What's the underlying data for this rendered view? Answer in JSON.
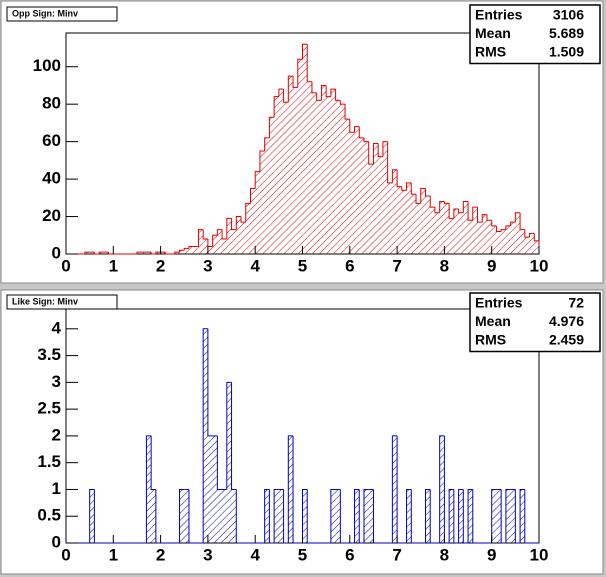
{
  "chart_data": [
    {
      "type": "histogram",
      "title": "Opp Sign: Minv",
      "color": "#e00000",
      "bins": [
        0,
        0.1,
        0.2,
        0.3,
        0.4,
        0.5,
        0.6,
        0.7,
        0.8,
        0.9,
        1,
        1.1,
        1.2,
        1.3,
        1.4,
        1.5,
        1.6,
        1.7,
        1.8,
        1.9,
        2,
        2.1,
        2.2,
        2.3,
        2.4,
        2.5,
        2.6,
        2.7,
        2.8,
        2.9,
        3,
        3.1,
        3.2,
        3.3,
        3.4,
        3.5,
        3.6,
        3.7,
        3.8,
        3.9,
        4,
        4.1,
        4.2,
        4.3,
        4.4,
        4.5,
        4.6,
        4.7,
        4.8,
        4.9,
        5,
        5.1,
        5.2,
        5.3,
        5.4,
        5.5,
        5.6,
        5.7,
        5.8,
        5.9,
        6,
        6.1,
        6.2,
        6.3,
        6.4,
        6.5,
        6.6,
        6.7,
        6.8,
        6.9,
        7,
        7.1,
        7.2,
        7.3,
        7.4,
        7.5,
        7.6,
        7.7,
        7.8,
        7.9,
        8,
        8.1,
        8.2,
        8.3,
        8.4,
        8.5,
        8.6,
        8.7,
        8.8,
        8.9,
        9,
        9.1,
        9.2,
        9.3,
        9.4,
        9.5,
        9.6,
        9.7,
        9.8,
        9.9,
        10
      ],
      "values": [
        0,
        0,
        0,
        0,
        1,
        1,
        0,
        1,
        1,
        0,
        0,
        0,
        0,
        0,
        0,
        1,
        1,
        1,
        0,
        1,
        1,
        0,
        0,
        1,
        2,
        3,
        4,
        4,
        13,
        8,
        4,
        10,
        13,
        8,
        19,
        13,
        20,
        17,
        27,
        35,
        44,
        55,
        62,
        73,
        84,
        88,
        81,
        95,
        89,
        104,
        112,
        92,
        86,
        82,
        90,
        84,
        88,
        82,
        80,
        72,
        65,
        68,
        62,
        60,
        48,
        59,
        52,
        60,
        38,
        45,
        36,
        34,
        38,
        32,
        27,
        35,
        31,
        25,
        22,
        28,
        27,
        19,
        24,
        22,
        28,
        18,
        25,
        17,
        21,
        18,
        15,
        12,
        13,
        15,
        17,
        22,
        13,
        9,
        11,
        7
      ],
      "xlim": [
        0,
        10
      ],
      "xticks": [
        0,
        1,
        2,
        3,
        4,
        5,
        6,
        7,
        8,
        9,
        10
      ],
      "ylim": [
        0,
        118
      ],
      "yticks": [
        0,
        20,
        40,
        60,
        80,
        100
      ],
      "stats": [
        {
          "label": "Entries",
          "value": 3106
        },
        {
          "label": "Mean",
          "value": 5.689
        },
        {
          "label": "RMS",
          "value": 1.509
        }
      ]
    },
    {
      "type": "histogram",
      "title": "Like Sign: Minv",
      "color": "#0000c0",
      "bins": [
        0,
        0.1,
        0.2,
        0.3,
        0.4,
        0.5,
        0.6,
        0.7,
        0.8,
        0.9,
        1,
        1.1,
        1.2,
        1.3,
        1.4,
        1.5,
        1.6,
        1.7,
        1.8,
        1.9,
        2,
        2.1,
        2.2,
        2.3,
        2.4,
        2.5,
        2.6,
        2.7,
        2.8,
        2.9,
        3,
        3.1,
        3.2,
        3.3,
        3.4,
        3.5,
        3.6,
        3.7,
        3.8,
        3.9,
        4,
        4.1,
        4.2,
        4.3,
        4.4,
        4.5,
        4.6,
        4.7,
        4.8,
        4.9,
        5,
        5.1,
        5.2,
        5.3,
        5.4,
        5.5,
        5.6,
        5.7,
        5.8,
        5.9,
        6,
        6.1,
        6.2,
        6.3,
        6.4,
        6.5,
        6.6,
        6.7,
        6.8,
        6.9,
        7,
        7.1,
        7.2,
        7.3,
        7.4,
        7.5,
        7.6,
        7.7,
        7.8,
        7.9,
        8,
        8.1,
        8.2,
        8.3,
        8.4,
        8.5,
        8.6,
        8.7,
        8.8,
        8.9,
        9,
        9.1,
        9.2,
        9.3,
        9.4,
        9.5,
        9.6,
        9.7,
        9.8,
        9.9,
        10
      ],
      "values": [
        0,
        0,
        0,
        0,
        0,
        1,
        0,
        0,
        0,
        0,
        0,
        0,
        0,
        0,
        0,
        0,
        0,
        2,
        1,
        0,
        0,
        0,
        0,
        0,
        1,
        1,
        0,
        0,
        0,
        4,
        2,
        2,
        1,
        1,
        3,
        1,
        0,
        0,
        0,
        0,
        0,
        0,
        1,
        0,
        1,
        1,
        0,
        2,
        0,
        0,
        1,
        0,
        0,
        0,
        0,
        0,
        1,
        1,
        0,
        0,
        0,
        1,
        0,
        1,
        1,
        0,
        0,
        0,
        0,
        2,
        0,
        0,
        1,
        0,
        0,
        0,
        1,
        0,
        0,
        2,
        0,
        1,
        0,
        1,
        0,
        1,
        0,
        0,
        0,
        0,
        1,
        1,
        0,
        1,
        1,
        0,
        1,
        0,
        0,
        0
      ],
      "xlim": [
        0,
        10
      ],
      "xticks": [
        0,
        1,
        2,
        3,
        4,
        5,
        6,
        7,
        8,
        9,
        10
      ],
      "ylim": [
        0,
        4.37
      ],
      "yticks": [
        0,
        0.5,
        1,
        1.5,
        2,
        2.5,
        3,
        3.5,
        4
      ],
      "stats": [
        {
          "label": "Entries",
          "value": 72
        },
        {
          "label": "Mean",
          "value": 4.976
        },
        {
          "label": "RMS",
          "value": 2.459
        }
      ]
    }
  ]
}
